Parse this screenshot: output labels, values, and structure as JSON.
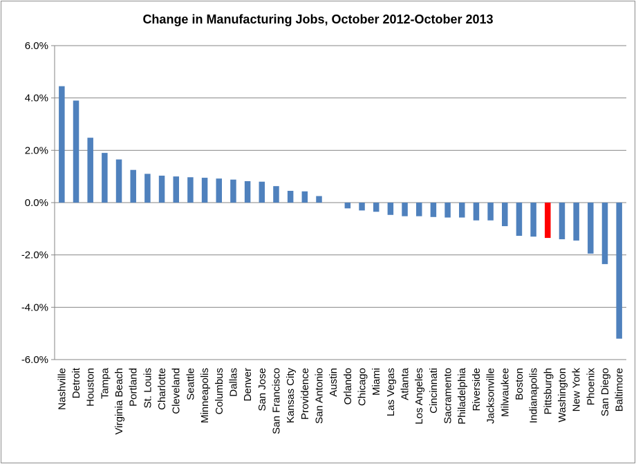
{
  "chart_data": {
    "type": "bar",
    "title": "Change in Manufacturing Jobs, October 2012-October 2013",
    "xlabel": "",
    "ylabel": "",
    "ylim": [
      -6.0,
      6.0
    ],
    "yticks": [
      6.0,
      4.0,
      2.0,
      0.0,
      -2.0,
      -4.0,
      -6.0
    ],
    "ytick_labels": [
      "6.0%",
      "4.0%",
      "2.0%",
      "0.0%",
      "-2.0%",
      "-4.0%",
      "-6.0%"
    ],
    "grid": "horizontal",
    "legend": "none",
    "bar_color": "#4f81bd",
    "highlight_color": "#ff0000",
    "highlight_category": "Pittsburgh",
    "categories": [
      "Nashville",
      "Detroit",
      "Houston",
      "Tampa",
      "Virginia Beach",
      "Portland",
      "St. Louis",
      "Charlotte",
      "Cleveland",
      "Seattle",
      "Minneapolis",
      "Columbus",
      "Dallas",
      "Denver",
      "San Jose",
      "San Francisco",
      "Kansas City",
      "Providence",
      "San Antonio",
      "Austin",
      "Orlando",
      "Chicago",
      "Miami",
      "Las Vegas",
      "Atlanta",
      "Los Angeles",
      "Cincinnati",
      "Sacramento",
      "Philadelphia",
      "Riverside",
      "Jacksonville",
      "Milwaukee",
      "Boston",
      "Indianapolis",
      "Pittsburgh",
      "Washington",
      "New York",
      "Phoenix",
      "San Diego",
      "Baltimore"
    ],
    "values": [
      4.45,
      3.9,
      2.48,
      1.9,
      1.65,
      1.25,
      1.1,
      1.03,
      1.0,
      0.97,
      0.95,
      0.92,
      0.88,
      0.82,
      0.8,
      0.63,
      0.45,
      0.43,
      0.25,
      0.0,
      -0.22,
      -0.3,
      -0.35,
      -0.47,
      -0.52,
      -0.52,
      -0.55,
      -0.57,
      -0.57,
      -0.68,
      -0.68,
      -0.9,
      -1.27,
      -1.3,
      -1.35,
      -1.4,
      -1.45,
      -1.95,
      -2.35,
      -5.2
    ]
  }
}
